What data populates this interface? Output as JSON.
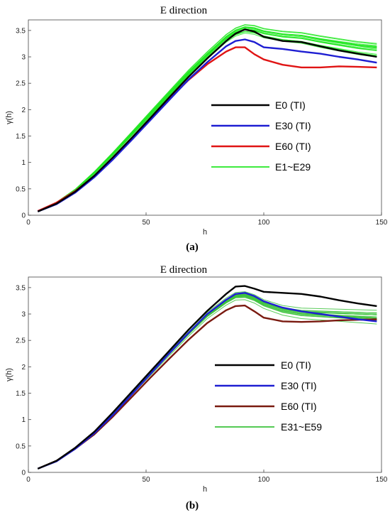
{
  "chart_data": [
    {
      "type": "line",
      "title": "E direction",
      "xlabel": "h",
      "ylabel": "γ(h)",
      "subcaption": "(a)",
      "xlim": [
        0,
        150
      ],
      "ylim": [
        0,
        3.7
      ],
      "xticks": [
        0,
        50,
        100,
        150
      ],
      "yticks": [
        0,
        0.5,
        1,
        1.5,
        2,
        2.5,
        3,
        3.5
      ],
      "grid": false,
      "legend_position": "right",
      "x": [
        4,
        12,
        20,
        28,
        36,
        44,
        52,
        60,
        68,
        76,
        84,
        88,
        92,
        96,
        100,
        108,
        116,
        124,
        132,
        140,
        148
      ],
      "series": [
        {
          "name": "E0 (TI)",
          "color": "#000000",
          "values": [
            0.07,
            0.22,
            0.45,
            0.75,
            1.1,
            1.47,
            1.85,
            2.24,
            2.62,
            2.97,
            3.3,
            3.44,
            3.52,
            3.48,
            3.38,
            3.3,
            3.28,
            3.2,
            3.12,
            3.06,
            3.0
          ]
        },
        {
          "name": "E30 (TI)",
          "color": "#1e1ed2",
          "values": [
            0.07,
            0.21,
            0.43,
            0.72,
            1.06,
            1.43,
            1.81,
            2.19,
            2.57,
            2.9,
            3.2,
            3.3,
            3.33,
            3.28,
            3.18,
            3.15,
            3.1,
            3.06,
            3.0,
            2.95,
            2.89
          ]
        },
        {
          "name": "E60 (TI)",
          "color": "#e01414",
          "values": [
            0.08,
            0.24,
            0.46,
            0.74,
            1.08,
            1.45,
            1.83,
            2.21,
            2.56,
            2.86,
            3.1,
            3.18,
            3.18,
            3.05,
            2.95,
            2.85,
            2.8,
            2.8,
            2.82,
            2.81,
            2.8
          ]
        },
        {
          "name": "E1~E29",
          "color": "#22e822",
          "values": [
            0.08,
            0.24,
            0.48,
            0.8,
            1.16,
            1.54,
            1.92,
            2.3,
            2.68,
            3.02,
            3.34,
            3.46,
            3.52,
            3.5,
            3.44,
            3.38,
            3.35,
            3.28,
            3.22,
            3.16,
            3.12
          ]
        }
      ]
    },
    {
      "type": "line",
      "title": "E direction",
      "xlabel": "h",
      "ylabel": "γ(h)",
      "subcaption": "(b)",
      "xlim": [
        0,
        150
      ],
      "ylim": [
        0,
        3.7
      ],
      "xticks": [
        0,
        50,
        100,
        150
      ],
      "yticks": [
        0,
        0.5,
        1,
        1.5,
        2,
        2.5,
        3,
        3.5
      ],
      "grid": false,
      "legend_position": "right",
      "x": [
        4,
        12,
        20,
        28,
        36,
        44,
        52,
        60,
        68,
        76,
        84,
        88,
        92,
        96,
        100,
        108,
        116,
        124,
        132,
        140,
        148
      ],
      "series": [
        {
          "name": "E0 (TI)",
          "color": "#000000",
          "values": [
            0.07,
            0.22,
            0.47,
            0.77,
            1.14,
            1.53,
            1.92,
            2.31,
            2.7,
            3.06,
            3.38,
            3.52,
            3.53,
            3.48,
            3.42,
            3.4,
            3.38,
            3.33,
            3.26,
            3.2,
            3.15
          ]
        },
        {
          "name": "E30 (TI)",
          "color": "#1e1ed2",
          "values": [
            0.07,
            0.21,
            0.45,
            0.74,
            1.09,
            1.48,
            1.87,
            2.26,
            2.64,
            3.0,
            3.27,
            3.38,
            3.4,
            3.34,
            3.24,
            3.12,
            3.05,
            3.0,
            2.95,
            2.9,
            2.86
          ]
        },
        {
          "name": "E60 (TI)",
          "color": "#7a1a10",
          "values": [
            0.07,
            0.22,
            0.45,
            0.72,
            1.06,
            1.43,
            1.8,
            2.16,
            2.51,
            2.83,
            3.07,
            3.15,
            3.16,
            3.05,
            2.93,
            2.86,
            2.85,
            2.86,
            2.88,
            2.89,
            2.9
          ]
        },
        {
          "name": "E31~E59",
          "color": "#3cc23c",
          "values": [
            0.07,
            0.22,
            0.46,
            0.75,
            1.11,
            1.5,
            1.88,
            2.26,
            2.63,
            2.97,
            3.23,
            3.33,
            3.34,
            3.28,
            3.18,
            3.06,
            3.0,
            2.98,
            2.96,
            2.94,
            2.92
          ]
        }
      ]
    }
  ]
}
